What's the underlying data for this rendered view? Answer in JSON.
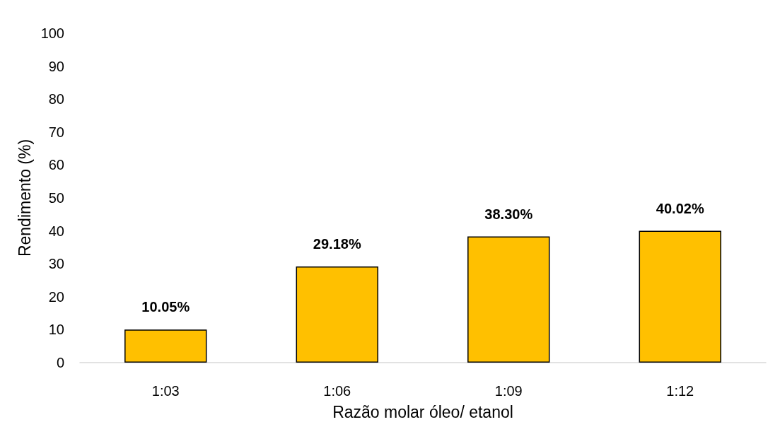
{
  "chart_data": {
    "type": "bar",
    "xlabel": "Razão molar óleo/ etanol",
    "ylabel": "Rendimento (%)",
    "categories": [
      "1:03",
      "1:06",
      "1:09",
      "1:12"
    ],
    "values": [
      10.05,
      29.18,
      38.3,
      40.02
    ],
    "value_labels": [
      "10.05%",
      "29.18%",
      "38.30%",
      "40.02%"
    ],
    "color": "#ffc000",
    "ylim": [
      0,
      100
    ],
    "yticks": [
      0,
      10,
      20,
      30,
      40,
      50,
      60,
      70,
      80,
      90,
      100
    ],
    "grid": false
  }
}
